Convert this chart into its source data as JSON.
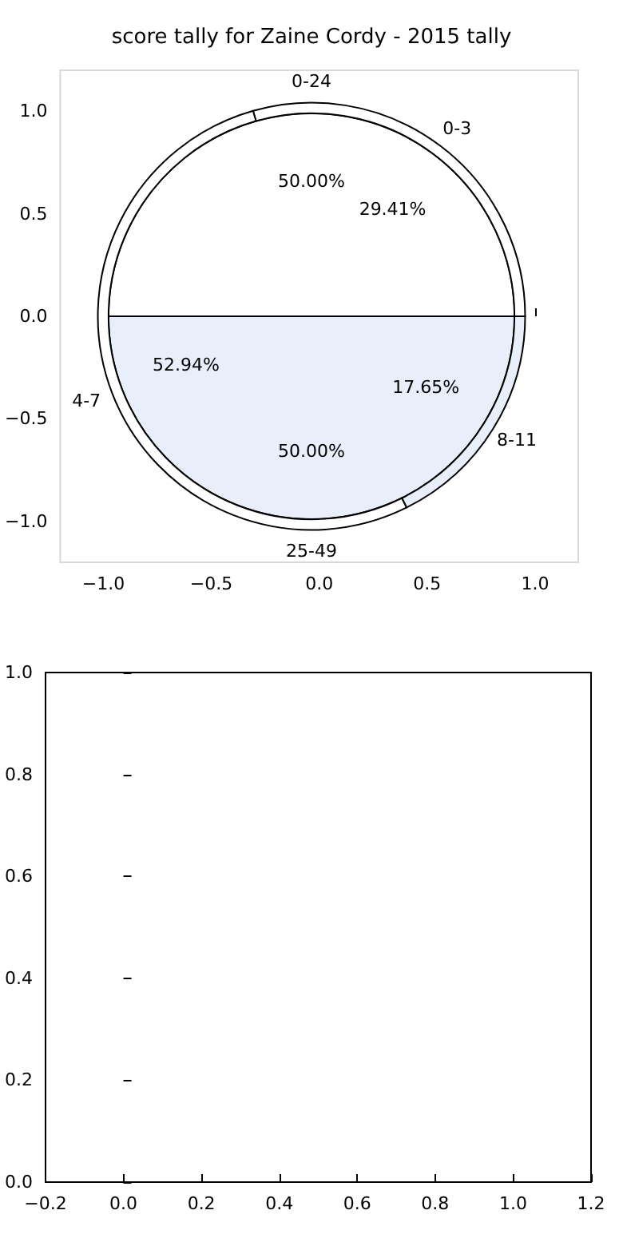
{
  "chart_data": [
    {
      "type": "scatter",
      "title": "score tally for Zaine Cordy - 2015 tally",
      "xlim": [
        -1.2,
        1.2
      ],
      "xticks": [
        {
          "value": -1,
          "label": "−1.0"
        },
        {
          "value": -0.5,
          "label": "−0.5"
        },
        {
          "value": 0,
          "label": "0.0"
        },
        {
          "value": 0.5,
          "label": "0.5"
        },
        {
          "value": 1,
          "label": "1.0"
        }
      ],
      "ylim": [
        -1.2,
        1.2
      ],
      "yticks": [
        {
          "value": -1,
          "label": "−1.0"
        },
        {
          "value": -0.5,
          "label": "−0.5"
        },
        {
          "value": 0,
          "label": "0.0"
        },
        {
          "value": 0.5,
          "label": "0.5"
        },
        {
          "value": 1,
          "label": "1.0"
        }
      ]
    },
    {
      "type": "pie",
      "categories": [
        "0-24",
        "25-49"
      ],
      "values": [
        50,
        50
      ],
      "colors": [
        "#ffffff",
        "#e8eefa"
      ],
      "value_labels": [
        "50.00%",
        "50.00%"
      ]
    },
    {
      "type": "donut",
      "categories": [
        "0-3",
        "4-7",
        "8-11"
      ],
      "values": [
        29.41,
        52.94,
        17.65
      ],
      "colors": [
        "#ffffff",
        "#ffffff",
        "#e8eefa"
      ],
      "value_labels": [
        "29.41%",
        "52.94%",
        "17.65%"
      ]
    },
    {
      "type": "scatter",
      "xlim": [
        -0.2,
        1.2
      ],
      "xticks": [
        {
          "value": -0.2,
          "label": "−0.2"
        },
        {
          "value": 0,
          "label": "0.0"
        },
        {
          "value": 0.2,
          "label": "0.2"
        },
        {
          "value": 0.4,
          "label": "0.4"
        },
        {
          "value": 0.6,
          "label": "0.6"
        },
        {
          "value": 0.8,
          "label": "0.8"
        },
        {
          "value": 1,
          "label": "1.0"
        },
        {
          "value": 1.2,
          "label": "1.2"
        }
      ],
      "ylim": [
        0,
        1
      ],
      "yticks": [
        {
          "value": 0,
          "label": "0.0"
        },
        {
          "value": 0.2,
          "label": "0.2"
        },
        {
          "value": 0.4,
          "label": "0.4"
        },
        {
          "value": 0.6,
          "label": "0.6"
        },
        {
          "value": 0.8,
          "label": "0.8"
        },
        {
          "value": 1,
          "label": "1.0"
        }
      ]
    }
  ]
}
